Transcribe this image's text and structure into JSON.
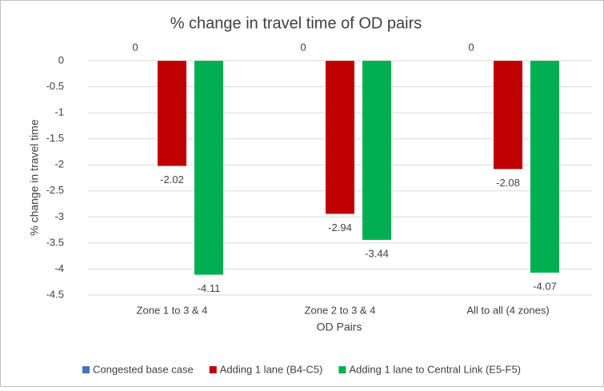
{
  "chart_data": {
    "type": "bar",
    "title": "% change in travel time of OD pairs",
    "x_label": "OD Pairs",
    "y_label": "% change in travel time",
    "categories": [
      "Zone 1 to 3 & 4",
      "Zone 2 to 3 & 4",
      "All to all (4 zones)"
    ],
    "series": [
      {
        "name": "Congested base case",
        "color": "#4472c4",
        "values": [
          0,
          0,
          0
        ]
      },
      {
        "name": "Adding 1 lane (B4-C5)",
        "color": "#c00000",
        "values": [
          -2.02,
          -2.94,
          -2.08
        ]
      },
      {
        "name": "Adding 1 lane to Central Link (E5-F5)",
        "color": "#00b050",
        "values": [
          -4.11,
          -3.44,
          -4.07
        ]
      }
    ],
    "ylim": [
      -4.5,
      0
    ],
    "yticks": [
      0,
      -0.5,
      -1,
      -1.5,
      -2,
      -2.5,
      -3,
      -3.5,
      -4,
      -4.5
    ],
    "grid": true,
    "legend": "bottom"
  }
}
